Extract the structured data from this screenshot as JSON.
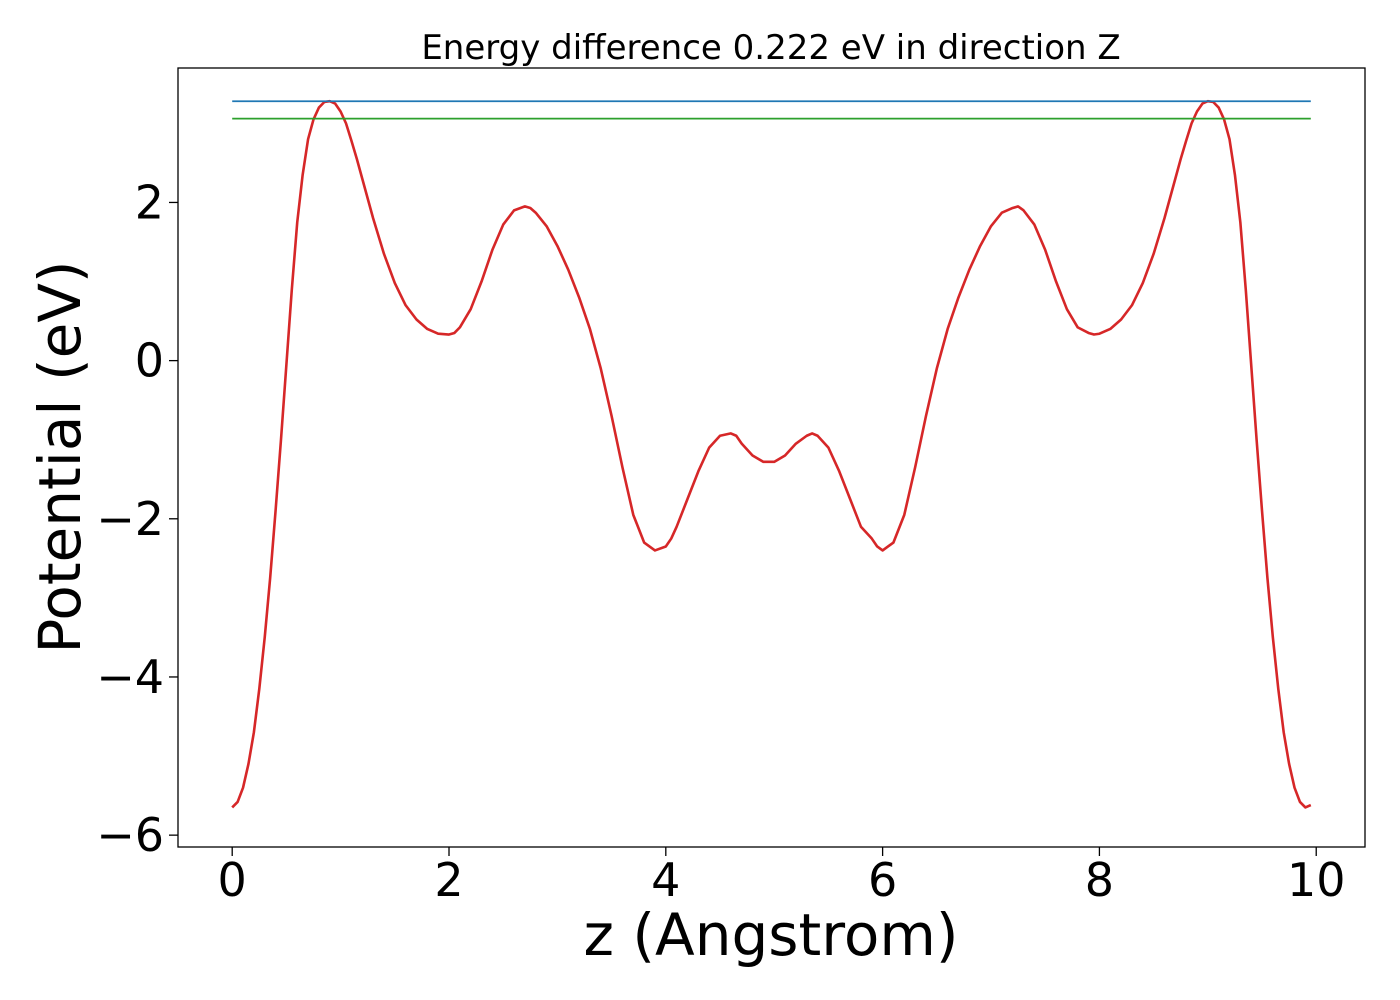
{
  "chart_data": {
    "type": "line",
    "title": "Energy difference 0.222 eV in direction Z",
    "xlabel": "z (Angstrom)",
    "ylabel": "Potential (eV)",
    "xlim": [
      -0.5,
      10.45
    ],
    "ylim": [
      -6.15,
      3.7
    ],
    "xticks": [
      0,
      2,
      4,
      6,
      8,
      10
    ],
    "xtick_labels": [
      "0",
      "2",
      "4",
      "6",
      "8",
      "10"
    ],
    "yticks": [
      -6,
      -4,
      -2,
      0,
      2
    ],
    "ytick_labels": [
      "−6",
      "−4",
      "−2",
      "0",
      "2"
    ],
    "grid": false,
    "series": [
      {
        "color": "#d62728",
        "x": [
          0.0,
          0.05,
          0.1,
          0.15,
          0.2,
          0.25,
          0.3,
          0.35,
          0.4,
          0.45,
          0.5,
          0.55,
          0.6,
          0.65,
          0.7,
          0.75,
          0.8,
          0.85,
          0.9,
          0.95,
          1.0,
          1.05,
          1.1,
          1.15,
          1.2,
          1.3,
          1.4,
          1.5,
          1.6,
          1.7,
          1.8,
          1.9,
          2.0,
          2.05,
          2.1,
          2.2,
          2.3,
          2.4,
          2.5,
          2.6,
          2.7,
          2.75,
          2.8,
          2.9,
          3.0,
          3.1,
          3.2,
          3.3,
          3.4,
          3.5,
          3.6,
          3.7,
          3.8,
          3.9,
          4.0,
          4.05,
          4.1,
          4.2,
          4.3,
          4.4,
          4.5,
          4.6,
          4.65,
          4.7,
          4.8,
          4.9,
          5.0,
          5.1,
          5.2,
          5.3,
          5.35,
          5.4,
          5.5,
          5.6,
          5.7,
          5.8,
          5.9,
          5.95,
          6.0,
          6.1,
          6.2,
          6.3,
          6.4,
          6.5,
          6.6,
          6.7,
          6.8,
          6.9,
          7.0,
          7.1,
          7.2,
          7.25,
          7.3,
          7.4,
          7.5,
          7.6,
          7.7,
          7.8,
          7.9,
          7.95,
          8.0,
          8.1,
          8.2,
          8.3,
          8.4,
          8.5,
          8.6,
          8.7,
          8.75,
          8.8,
          8.85,
          8.9,
          8.95,
          9.0,
          9.05,
          9.1,
          9.15,
          9.2,
          9.25,
          9.3,
          9.35,
          9.4,
          9.45,
          9.5,
          9.55,
          9.6,
          9.65,
          9.7,
          9.75,
          9.8,
          9.85,
          9.9,
          9.95
        ],
        "y": [
          -5.65,
          -5.58,
          -5.4,
          -5.1,
          -4.7,
          -4.15,
          -3.5,
          -2.75,
          -1.9,
          -1.0,
          -0.05,
          0.9,
          1.75,
          2.35,
          2.8,
          3.05,
          3.2,
          3.27,
          3.28,
          3.25,
          3.15,
          3.0,
          2.78,
          2.55,
          2.3,
          1.8,
          1.35,
          0.98,
          0.7,
          0.52,
          0.4,
          0.34,
          0.33,
          0.35,
          0.42,
          0.65,
          1.0,
          1.4,
          1.72,
          1.9,
          1.95,
          1.93,
          1.87,
          1.7,
          1.45,
          1.15,
          0.8,
          0.4,
          -0.1,
          -0.7,
          -1.35,
          -1.95,
          -2.3,
          -2.4,
          -2.35,
          -2.25,
          -2.1,
          -1.75,
          -1.4,
          -1.1,
          -0.95,
          -0.92,
          -0.95,
          -1.05,
          -1.2,
          -1.28,
          -1.28,
          -1.2,
          -1.05,
          -0.95,
          -0.92,
          -0.95,
          -1.1,
          -1.4,
          -1.75,
          -2.1,
          -2.25,
          -2.35,
          -2.4,
          -2.3,
          -1.95,
          -1.35,
          -0.7,
          -0.1,
          0.4,
          0.8,
          1.15,
          1.45,
          1.7,
          1.87,
          1.93,
          1.95,
          1.9,
          1.72,
          1.4,
          1.0,
          0.65,
          0.42,
          0.35,
          0.33,
          0.34,
          0.4,
          0.52,
          0.7,
          0.98,
          1.35,
          1.8,
          2.3,
          2.55,
          2.78,
          3.0,
          3.15,
          3.25,
          3.28,
          3.27,
          3.2,
          3.05,
          2.8,
          2.35,
          1.75,
          0.9,
          -0.05,
          -1.0,
          -1.9,
          -2.75,
          -3.5,
          -4.15,
          -4.7,
          -5.1,
          -5.4,
          -5.58,
          -5.65,
          -5.62
        ]
      },
      {
        "color": "#1f77b4",
        "x": [
          0.0,
          9.95
        ],
        "y": [
          3.28,
          3.28
        ]
      },
      {
        "color": "#2ca02c",
        "x": [
          0.0,
          9.95
        ],
        "y": [
          3.06,
          3.06
        ]
      }
    ]
  }
}
